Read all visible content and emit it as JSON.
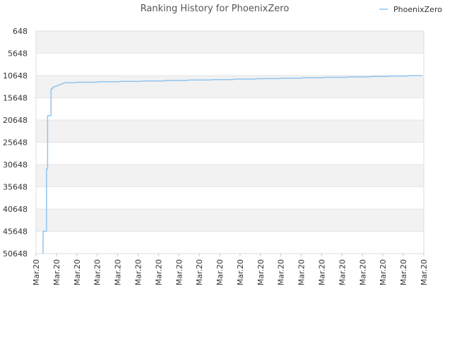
{
  "chart_data": {
    "type": "line",
    "title": "Ranking History for PhoenixZero",
    "xlabel": "",
    "ylabel": "",
    "legend": {
      "position": "top-right",
      "entries": [
        "PhoenixZero"
      ]
    },
    "grid": true,
    "y_reversed": true,
    "ylim": [
      648,
      50648
    ],
    "yticks": [
      "648",
      "5648",
      "10648",
      "15648",
      "20648",
      "25648",
      "30648",
      "35648",
      "40648",
      "45648",
      "50648"
    ],
    "xticks": [
      "Mar.20",
      "Mar.20",
      "Mar.20",
      "Mar.20",
      "Mar.20",
      "Mar.20",
      "Mar.20",
      "Mar.20",
      "Mar.20",
      "Mar.20",
      "Mar.20",
      "Mar.20",
      "Mar.20",
      "Mar.20",
      "Mar.20",
      "Mar.20",
      "Mar.20",
      "Mar.20",
      "Mar.20",
      "Mar.20"
    ],
    "series": [
      {
        "name": "PhoenixZero",
        "color": "#90c4ee",
        "x": [
          0.0,
          0.0,
          0.009,
          0.009,
          0.012,
          0.012,
          0.021,
          0.021,
          0.025,
          0.025,
          0.055,
          0.055,
          0.085,
          0.09,
          0.14,
          0.145,
          0.2,
          0.205,
          0.26,
          0.265,
          0.32,
          0.325,
          0.38,
          0.385,
          0.44,
          0.445,
          0.5,
          0.505,
          0.56,
          0.565,
          0.62,
          0.625,
          0.68,
          0.685,
          0.74,
          0.745,
          0.8,
          0.805,
          0.86,
          0.865,
          0.91,
          0.915,
          0.96,
          0.965,
          1.0
        ],
        "y": [
          50648,
          45648,
          45648,
          31648,
          31648,
          19648,
          19648,
          13648,
          13648,
          13348,
          12348,
          12248,
          12248,
          12148,
          12148,
          12048,
          12048,
          11948,
          11948,
          11848,
          11848,
          11748,
          11748,
          11648,
          11648,
          11548,
          11548,
          11448,
          11448,
          11348,
          11348,
          11248,
          11248,
          11148,
          11148,
          11048,
          11048,
          10948,
          10948,
          10848,
          10848,
          10748,
          10748,
          10648,
          10648
        ]
      }
    ]
  }
}
